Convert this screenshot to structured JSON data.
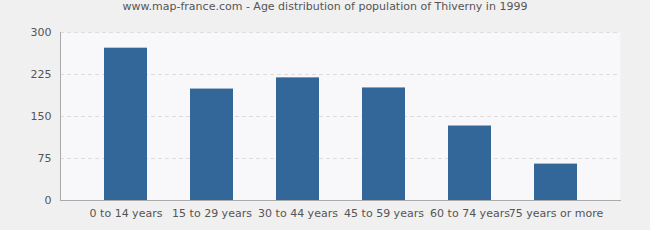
{
  "chart_data": {
    "type": "bar",
    "title": "www.map-france.com - Age distribution of population of Thiverny in 1999",
    "categories": [
      "0 to 14 years",
      "15 to 29 years",
      "30 to 44 years",
      "45 to 59 years",
      "60 to 74 years",
      "75 years or more"
    ],
    "values": [
      272,
      199,
      219,
      201,
      133,
      65
    ],
    "color": "#336699",
    "ylim": [
      0,
      300
    ],
    "yticks": [
      0,
      75,
      150,
      225,
      300
    ],
    "grid": true
  }
}
